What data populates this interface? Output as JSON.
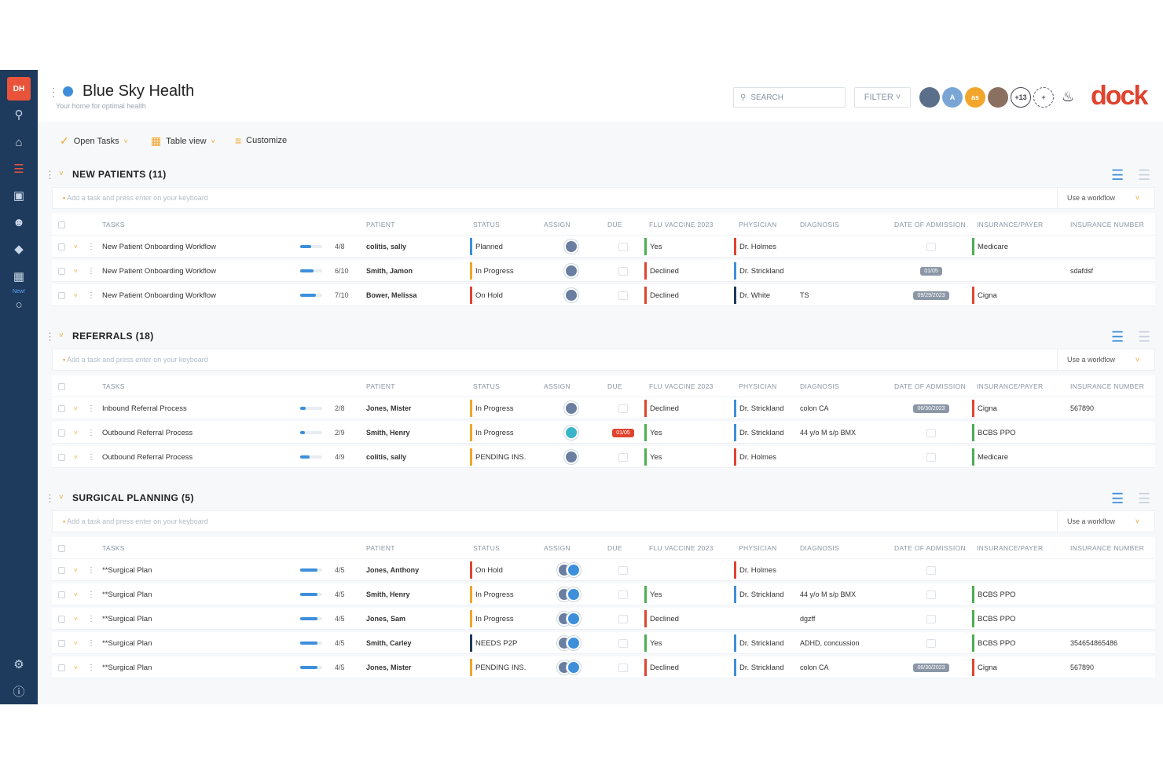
{
  "nav": {
    "brand": "DH",
    "new_label": "New!"
  },
  "header": {
    "title": "Blue Sky Health",
    "subtitle": "Your home for optimal health",
    "search_placeholder": "SEARCH",
    "filter_label": "FILTER",
    "avatars_extra": "+13",
    "avatar_a": "A",
    "avatar_orange": "as",
    "logo": "dock"
  },
  "toolbar": {
    "open_tasks": "Open Tasks",
    "table_view": "Table view",
    "customize": "Customize"
  },
  "columns": [
    "TASKS",
    "PATIENT",
    "STATUS",
    "ASSIGN",
    "DUE",
    "FLU VACCINE 2023",
    "PHYSICIAN",
    "DIAGNOSIS",
    "DATE OF ADMISSION",
    "INSURANCE/PAYER",
    "INSURANCE NUMBER"
  ],
  "add_placeholder": "Add a task and press enter on your keyboard",
  "workflow_label": "Use a workflow",
  "sections": [
    {
      "name": "NEW PATIENTS (11)",
      "rows": [
        {
          "task": "New Patient Onboarding Workflow",
          "progress": 0.5,
          "count": "4/8",
          "patient": "colitis, sally",
          "status": "Planned",
          "status_color": "#3d8fdc",
          "due": "",
          "flu": "Yes",
          "flu_color": "#4caf50",
          "physician": "Dr. Holmes",
          "phy_color": "#e0432f",
          "diagnosis": "",
          "admission": "",
          "ins": "Medicare",
          "ins_color": "#4caf50",
          "number": ""
        },
        {
          "task": "New Patient Onboarding Workflow",
          "progress": 0.6,
          "count": "6/10",
          "patient": "Smith, Jamon",
          "status": "In Progress",
          "status_color": "#f2a62b",
          "due": "",
          "flu": "Declined",
          "flu_color": "#e0432f",
          "physician": "Dr. Strickland",
          "phy_color": "#3d8fdc",
          "diagnosis": "",
          "admission": "01/05",
          "ins": "",
          "ins_color": "#fff",
          "number": "sdafdsf"
        },
        {
          "task": "New Patient Onboarding Workflow",
          "progress": 0.7,
          "count": "7/10",
          "patient": "Bower, Melissa",
          "status": "On Hold",
          "status_color": "#e0432f",
          "due": "",
          "flu": "Declined",
          "flu_color": "#e0432f",
          "physician": "Dr. White",
          "phy_color": "#1e3a5c",
          "diagnosis": "TS",
          "admission": "09/29/2023",
          "ins": "Cigna",
          "ins_color": "#e0432f",
          "number": ""
        }
      ]
    },
    {
      "name": "REFERRALS (18)",
      "rows": [
        {
          "task": "Inbound Referral Process",
          "progress": 0.25,
          "count": "2/8",
          "patient": "Jones, Mister",
          "status": "In Progress",
          "status_color": "#f2a62b",
          "due": "",
          "flu": "Declined",
          "flu_color": "#e0432f",
          "physician": "Dr. Strickland",
          "phy_color": "#3d8fdc",
          "diagnosis": "colon CA",
          "admission": "06/30/2023",
          "ins": "Cigna",
          "ins_color": "#e0432f",
          "number": "567890"
        },
        {
          "task": "Outbound Referral Process",
          "progress": 0.22,
          "count": "2/9",
          "patient": "Smith, Henry",
          "status": "In Progress",
          "status_color": "#f2a62b",
          "due": "01/05",
          "flu": "Yes",
          "flu_color": "#4caf50",
          "physician": "Dr. Strickland",
          "phy_color": "#3d8fdc",
          "diagnosis": "44 y/o M s/p BMX",
          "admission": "",
          "ins": "BCBS PPO",
          "ins_color": "#4caf50",
          "number": ""
        },
        {
          "task": "Outbound Referral Process",
          "progress": 0.44,
          "count": "4/9",
          "patient": "colitis, sally",
          "status": "PENDING INS.",
          "status_color": "#f2a62b",
          "due": "",
          "flu": "Yes",
          "flu_color": "#4caf50",
          "physician": "Dr. Holmes",
          "phy_color": "#e0432f",
          "diagnosis": "",
          "admission": "",
          "ins": "Medicare",
          "ins_color": "#4caf50",
          "number": ""
        }
      ]
    },
    {
      "name": "SURGICAL PLANNING (5)",
      "rows": [
        {
          "task": "**Surgical Plan",
          "progress": 0.8,
          "count": "4/5",
          "patient": "Jones, Anthony",
          "status": "On Hold",
          "status_color": "#e0432f",
          "due": "",
          "flu": "",
          "flu_color": "#fff",
          "physician": "Dr. Holmes",
          "phy_color": "#e0432f",
          "diagnosis": "",
          "admission": "",
          "ins": "",
          "ins_color": "#fff",
          "number": ""
        },
        {
          "task": "**Surgical Plan",
          "progress": 0.8,
          "count": "4/5",
          "patient": "Smith, Henry",
          "status": "In Progress",
          "status_color": "#f2a62b",
          "due": "",
          "flu": "Yes",
          "flu_color": "#4caf50",
          "physician": "Dr. Strickland",
          "phy_color": "#3d8fdc",
          "diagnosis": "44 y/o M s/p BMX",
          "admission": "",
          "ins": "BCBS PPO",
          "ins_color": "#4caf50",
          "number": ""
        },
        {
          "task": "**Surgical Plan",
          "progress": 0.8,
          "count": "4/5",
          "patient": "Jones, Sam",
          "status": "In Progress",
          "status_color": "#f2a62b",
          "due": "",
          "flu": "Declined",
          "flu_color": "#e0432f",
          "physician": "",
          "phy_color": "#fff",
          "diagnosis": "dgzff",
          "admission": "",
          "ins": "BCBS PPO",
          "ins_color": "#4caf50",
          "number": ""
        },
        {
          "task": "**Surgical Plan",
          "progress": 0.8,
          "count": "4/5",
          "patient": "Smith, Carley",
          "status": "NEEDS P2P",
          "status_color": "#1e3a5c",
          "due": "",
          "flu": "Yes",
          "flu_color": "#4caf50",
          "physician": "Dr. Strickland",
          "phy_color": "#3d8fdc",
          "diagnosis": "ADHD, concussion",
          "admission": "",
          "ins": "BCBS PPO",
          "ins_color": "#4caf50",
          "number": "354654865486"
        },
        {
          "task": "**Surgical Plan",
          "progress": 0.8,
          "count": "4/5",
          "patient": "Jones, Mister",
          "status": "PENDING INS.",
          "status_color": "#f2a62b",
          "due": "",
          "flu": "Declined",
          "flu_color": "#e0432f",
          "physician": "Dr. Strickland",
          "phy_color": "#3d8fdc",
          "diagnosis": "colon CA",
          "admission": "06/30/2023",
          "ins": "Cigna",
          "ins_color": "#e0432f",
          "number": "567890"
        }
      ]
    }
  ]
}
